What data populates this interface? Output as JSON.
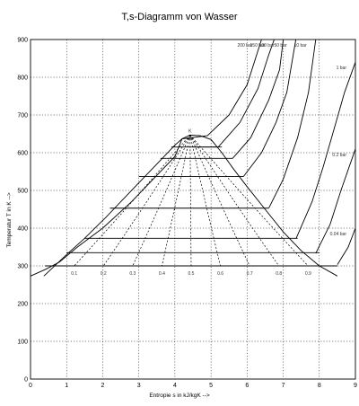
{
  "chart_data": {
    "type": "line",
    "title": "T,s-Diagramm von Wasser",
    "xlabel": "Entropie s in kJ/kgK -->",
    "ylabel": "Temperatur T in K -->",
    "xlim": [
      0,
      9
    ],
    "ylim": [
      0,
      900
    ],
    "grid": true,
    "x_ticks": [
      "0",
      "1",
      "2",
      "3",
      "4",
      "5",
      "6",
      "7",
      "8",
      "9"
    ],
    "y_ticks": [
      "0",
      "100",
      "200",
      "300",
      "400",
      "500",
      "600",
      "700",
      "800",
      "900"
    ],
    "saturation_dome": [
      [
        0.37,
        273
      ],
      [
        1.0,
        330
      ],
      [
        1.5,
        373
      ],
      [
        2.1,
        430
      ],
      [
        2.7,
        490
      ],
      [
        3.2,
        540
      ],
      [
        3.6,
        580
      ],
      [
        4.0,
        620
      ],
      [
        4.2,
        637
      ],
      [
        4.42,
        647
      ],
      [
        4.7,
        645
      ],
      [
        5.0,
        635
      ],
      [
        5.3,
        600
      ],
      [
        5.6,
        560
      ],
      [
        6.0,
        510
      ],
      [
        6.5,
        450
      ],
      [
        7.0,
        390
      ],
      [
        7.5,
        340
      ],
      [
        8.0,
        300
      ],
      [
        8.5,
        273
      ]
    ],
    "isobars": [
      {
        "name": "200 bar",
        "points": [
          [
            4.2,
            637
          ],
          [
            4.9,
            645
          ],
          [
            5.5,
            700
          ],
          [
            6.0,
            780
          ],
          [
            6.4,
            900
          ]
        ]
      },
      {
        "name": "150 bar",
        "points": [
          [
            4.5,
            615
          ],
          [
            5.2,
            615
          ],
          [
            5.8,
            680
          ],
          [
            6.3,
            770
          ],
          [
            6.6,
            860
          ],
          [
            6.75,
            900
          ]
        ]
      },
      {
        "name": "100 bar",
        "points": [
          [
            5.6,
            585
          ],
          [
            6.1,
            640
          ],
          [
            6.6,
            740
          ],
          [
            6.9,
            820
          ],
          [
            7.0,
            900
          ]
        ]
      },
      {
        "name": "50 bar",
        "points": [
          [
            5.9,
            537
          ],
          [
            6.4,
            600
          ],
          [
            6.8,
            680
          ],
          [
            7.1,
            760
          ],
          [
            7.35,
            900
          ]
        ]
      },
      {
        "name": "10 bar",
        "points": [
          [
            6.6,
            453
          ],
          [
            7.0,
            530
          ],
          [
            7.4,
            640
          ],
          [
            7.7,
            760
          ],
          [
            7.9,
            900
          ]
        ]
      },
      {
        "name": "1 bar",
        "points": [
          [
            7.36,
            373
          ],
          [
            7.8,
            470
          ],
          [
            8.1,
            560
          ],
          [
            8.4,
            660
          ],
          [
            8.7,
            760
          ],
          [
            9.0,
            840
          ]
        ]
      },
      {
        "name": "0.2 bar",
        "points": [
          [
            7.9,
            333
          ],
          [
            8.3,
            410
          ],
          [
            8.6,
            500
          ],
          [
            9.0,
            610
          ]
        ]
      },
      {
        "name": "0.04 bar",
        "points": [
          [
            8.5,
            303
          ],
          [
            8.8,
            350
          ],
          [
            9.0,
            400
          ]
        ]
      }
    ],
    "liquid_line": [
      [
        0,
        273
      ],
      [
        0.4,
        290
      ],
      [
        0.8,
        310
      ],
      [
        1.3,
        350
      ],
      [
        2.0,
        400
      ],
      [
        2.8,
        470
      ],
      [
        3.5,
        540
      ],
      [
        4.0,
        590
      ],
      [
        4.2,
        637
      ]
    ],
    "isotherms_two_phase": [
      {
        "T": 300,
        "x": [
          0.4,
          8.5
        ]
      },
      {
        "T": 335,
        "x": [
          1.0,
          8.0
        ]
      },
      {
        "T": 373,
        "x": [
          1.5,
          7.4
        ]
      },
      {
        "T": 453,
        "x": [
          2.2,
          6.6
        ]
      },
      {
        "T": 537,
        "x": [
          3.0,
          5.9
        ]
      },
      {
        "T": 585,
        "x": [
          3.6,
          5.6
        ]
      },
      {
        "T": 615,
        "x": [
          3.9,
          5.3
        ]
      }
    ],
    "quality_lines": [
      "0.1",
      "0.2",
      "0.3",
      "0.4",
      "0.5",
      "0.6",
      "0.7",
      "0.8",
      "0.9"
    ],
    "critical_point_label": "K"
  }
}
